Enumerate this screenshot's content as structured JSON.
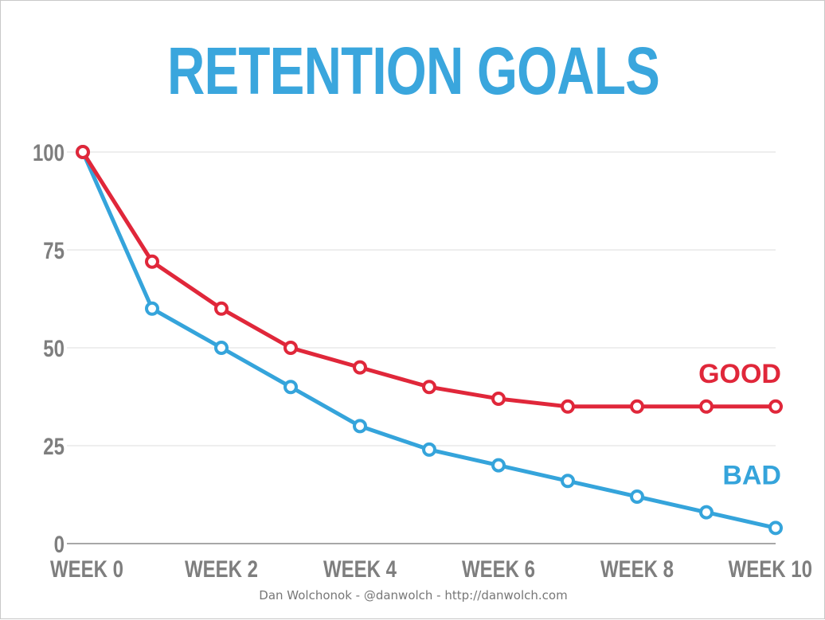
{
  "title": "RETENTION GOALS",
  "footer": "Dan Wolchonok - @danwolch - http://danwolch.com",
  "chart_data": {
    "type": "line",
    "title": "RETENTION GOALS",
    "xlabel": "",
    "ylabel": "",
    "x": [
      0,
      1,
      2,
      3,
      4,
      5,
      6,
      7,
      8,
      9,
      10
    ],
    "x_tick_values": [
      0,
      2,
      4,
      6,
      8,
      10
    ],
    "x_tick_labels": [
      "WEEK 0",
      "WEEK 2",
      "WEEK 4",
      "WEEK 6",
      "WEEK 8",
      "WEEK 10"
    ],
    "y_tick_values": [
      0,
      25,
      50,
      75,
      100
    ],
    "y_tick_labels": [
      "0",
      "25",
      "50",
      "75",
      "100"
    ],
    "ylim": [
      0,
      100
    ],
    "xlim": [
      0,
      10
    ],
    "grid": "horizontal",
    "legend": "none",
    "series": [
      {
        "name": "GOOD",
        "color": "#e0273a",
        "values": [
          100,
          72,
          60,
          50,
          45,
          40,
          37,
          35,
          35,
          35,
          35
        ]
      },
      {
        "name": "BAD",
        "color": "#35a4db",
        "values": [
          100,
          60,
          50,
          40,
          30,
          24,
          20,
          16,
          12,
          8,
          4
        ]
      }
    ]
  }
}
